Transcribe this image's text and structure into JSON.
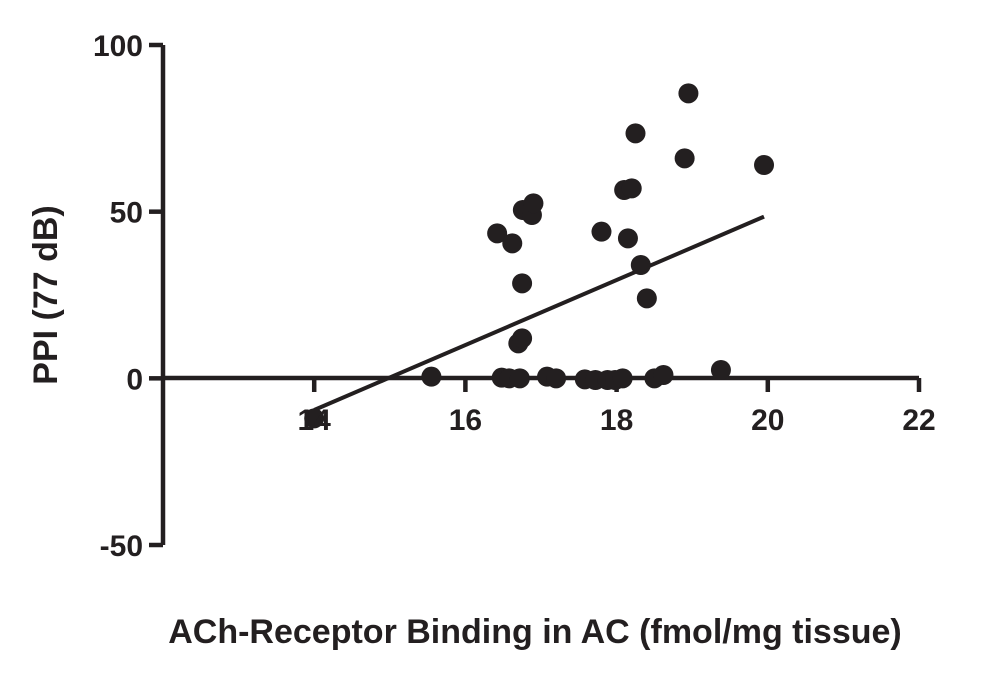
{
  "chart_data": {
    "type": "scatter",
    "xlabel": "ACh-Receptor Binding in AC (fmol/mg tissue)",
    "ylabel": "PPI (77 dB)",
    "xlim": [
      12,
      22
    ],
    "ylim": [
      -50,
      100
    ],
    "x_ticks": [
      14,
      16,
      18,
      20,
      22
    ],
    "x_tick_labels": [
      "14",
      "16",
      "18",
      "20",
      "22"
    ],
    "y_ticks": [
      -50,
      0,
      50,
      100
    ],
    "y_tick_labels": [
      "-50",
      "0",
      "50",
      "100"
    ],
    "grid": false,
    "color": "#231f20",
    "points": [
      {
        "x": 14.0,
        "y": -12
      },
      {
        "x": 15.55,
        "y": 0.5
      },
      {
        "x": 16.42,
        "y": 43.5
      },
      {
        "x": 16.48,
        "y": 0.2
      },
      {
        "x": 16.58,
        "y": 0
      },
      {
        "x": 16.62,
        "y": 40.5
      },
      {
        "x": 16.72,
        "y": 0
      },
      {
        "x": 16.7,
        "y": 10.5
      },
      {
        "x": 16.75,
        "y": 12
      },
      {
        "x": 16.75,
        "y": 28.5
      },
      {
        "x": 16.76,
        "y": 50.5
      },
      {
        "x": 16.88,
        "y": 49
      },
      {
        "x": 16.9,
        "y": 52.5
      },
      {
        "x": 17.08,
        "y": 0.5
      },
      {
        "x": 17.2,
        "y": 0
      },
      {
        "x": 17.58,
        "y": -0.3
      },
      {
        "x": 17.72,
        "y": -0.5
      },
      {
        "x": 17.8,
        "y": 44
      },
      {
        "x": 17.88,
        "y": -0.5
      },
      {
        "x": 17.98,
        "y": -0.5
      },
      {
        "x": 18.08,
        "y": 0
      },
      {
        "x": 18.1,
        "y": 56.5
      },
      {
        "x": 18.15,
        "y": 42
      },
      {
        "x": 18.2,
        "y": 57
      },
      {
        "x": 18.25,
        "y": 73.5
      },
      {
        "x": 18.32,
        "y": 34
      },
      {
        "x": 18.4,
        "y": 24
      },
      {
        "x": 18.5,
        "y": 0
      },
      {
        "x": 18.62,
        "y": 1
      },
      {
        "x": 18.9,
        "y": 66
      },
      {
        "x": 18.95,
        "y": 85.5
      },
      {
        "x": 19.38,
        "y": 2.5
      },
      {
        "x": 19.95,
        "y": 64
      }
    ],
    "regression_line": {
      "x": [
        14.0,
        19.95
      ],
      "y": [
        -9.5,
        48.5
      ]
    }
  }
}
